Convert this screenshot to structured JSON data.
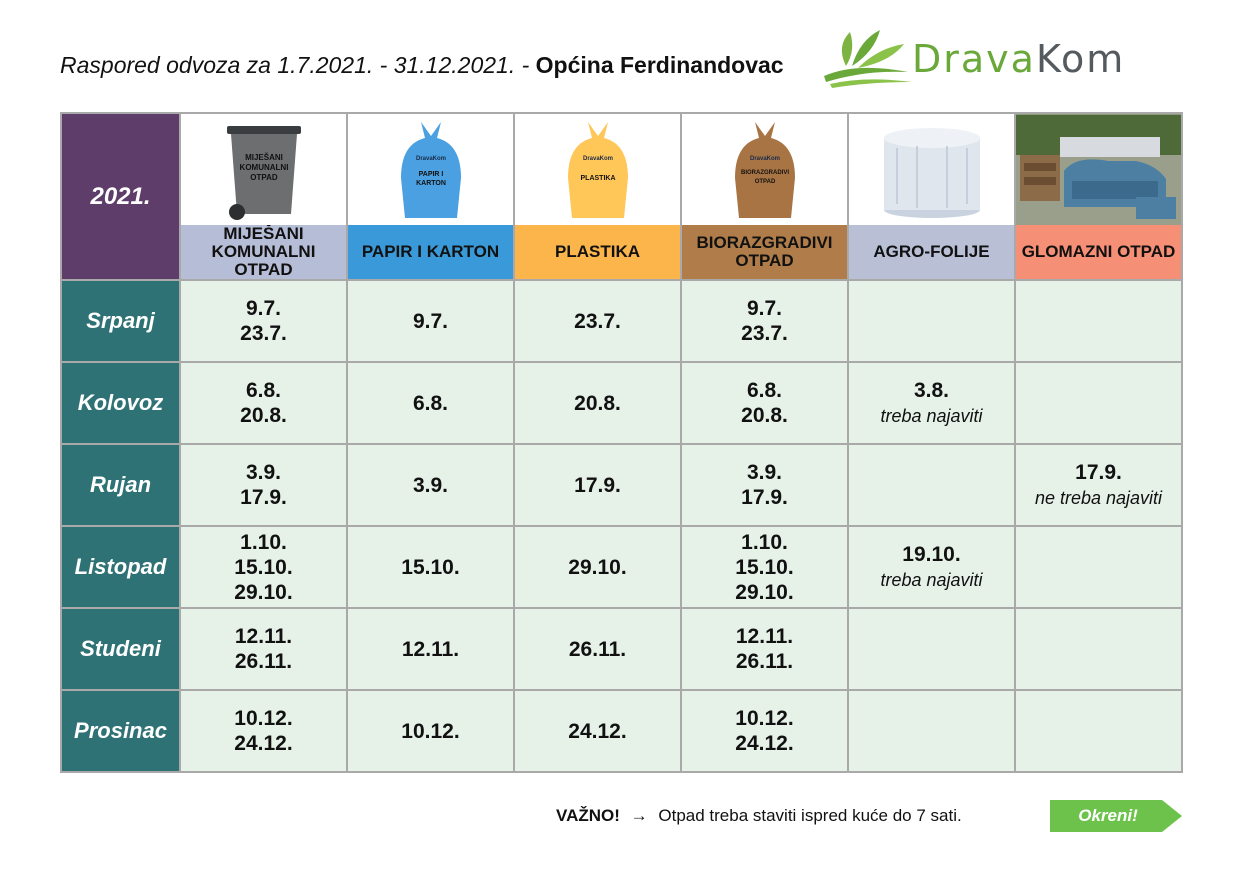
{
  "header": {
    "title_italic": "Raspored odvoza za 1.7.2021. - 31.12.2021. -",
    "title_bold": "Općina Ferdinandovac"
  },
  "logo": {
    "word1": "Drava",
    "word2": "Kom"
  },
  "table": {
    "year": "2021.",
    "categories": [
      {
        "label_line1": "MIJEŠANI",
        "label_line2": "KOMUNALNI OTPAD",
        "color": "#b6bdd6",
        "icon": "grey-bin-icon",
        "icon_text": [
          "MIJEŠANI",
          "KOMUNALNI",
          "OTPAD"
        ]
      },
      {
        "label_line1": "PAPIR I KARTON",
        "label_line2": "",
        "color": "#3a9ad9",
        "icon": "blue-bag-icon",
        "icon_text": [
          "PAPIR I",
          "KARTON"
        ]
      },
      {
        "label_line1": "PLASTIKA",
        "label_line2": "",
        "color": "#fbb54a",
        "icon": "yellow-bag-icon",
        "icon_text": [
          "PLASTIKA"
        ]
      },
      {
        "label_line1": "BIORAZGRADIVI",
        "label_line2": "OTPAD",
        "color": "#b07d4a",
        "icon": "brown-bag-icon",
        "icon_text": [
          "BIORAZGRADIVI",
          "OTPAD"
        ]
      },
      {
        "label_line1": "AGRO-FOLIJE",
        "label_line2": "",
        "color": "#b9c0d6",
        "icon": "silage-bale-icon",
        "icon_text": []
      },
      {
        "label_line1": "GLOMAZNI OTPAD",
        "label_line2": "",
        "color": "#f58f75",
        "icon": "bulky-furniture-icon",
        "icon_text": []
      }
    ],
    "bag_brand": "DravaKom",
    "rows": [
      {
        "month": "Srpanj",
        "cells": [
          {
            "dates": [
              "9.7.",
              "23.7."
            ]
          },
          {
            "dates": [
              "9.7."
            ]
          },
          {
            "dates": [
              "23.7."
            ]
          },
          {
            "dates": [
              "9.7.",
              "23.7."
            ]
          },
          {
            "dates": []
          },
          {
            "dates": []
          }
        ]
      },
      {
        "month": "Kolovoz",
        "cells": [
          {
            "dates": [
              "6.8.",
              "20.8."
            ]
          },
          {
            "dates": [
              "6.8."
            ]
          },
          {
            "dates": [
              "20.8."
            ]
          },
          {
            "dates": [
              "6.8.",
              "20.8."
            ]
          },
          {
            "dates": [
              "3.8."
            ],
            "note": "treba najaviti"
          },
          {
            "dates": []
          }
        ]
      },
      {
        "month": "Rujan",
        "cells": [
          {
            "dates": [
              "3.9.",
              "17.9."
            ]
          },
          {
            "dates": [
              "3.9."
            ]
          },
          {
            "dates": [
              "17.9."
            ]
          },
          {
            "dates": [
              "3.9.",
              "17.9."
            ]
          },
          {
            "dates": []
          },
          {
            "dates": [
              "17.9."
            ],
            "note": "ne treba najaviti"
          }
        ]
      },
      {
        "month": "Listopad",
        "cells": [
          {
            "dates": [
              "1.10.",
              "15.10.",
              "29.10."
            ]
          },
          {
            "dates": [
              "15.10."
            ]
          },
          {
            "dates": [
              "29.10."
            ]
          },
          {
            "dates": [
              "1.10.",
              "15.10.",
              "29.10."
            ]
          },
          {
            "dates": [
              "19.10."
            ],
            "note": "treba najaviti"
          },
          {
            "dates": []
          }
        ]
      },
      {
        "month": "Studeni",
        "cells": [
          {
            "dates": [
              "12.11.",
              "26.11."
            ]
          },
          {
            "dates": [
              "12.11."
            ]
          },
          {
            "dates": [
              "26.11."
            ]
          },
          {
            "dates": [
              "12.11.",
              "26.11."
            ]
          },
          {
            "dates": []
          },
          {
            "dates": []
          }
        ]
      },
      {
        "month": "Prosinac",
        "cells": [
          {
            "dates": [
              "10.12.",
              "24.12."
            ]
          },
          {
            "dates": [
              "10.12."
            ]
          },
          {
            "dates": [
              "24.12."
            ]
          },
          {
            "dates": [
              "10.12.",
              "24.12."
            ]
          },
          {
            "dates": []
          },
          {
            "dates": []
          }
        ]
      }
    ]
  },
  "footer": {
    "important": "VAŽNO!",
    "arrow": "→",
    "text": "Otpad treba staviti ispred kuće do 7 sati.",
    "button": "Okreni!",
    "button_color": "#6cc24a"
  },
  "colors": {
    "year_bg": "#5e3d6b",
    "month_bg": "#2f7276",
    "date_bg": "#e6f1e8",
    "logo_green": "#6aa83a",
    "logo_grey": "#555a5e"
  }
}
